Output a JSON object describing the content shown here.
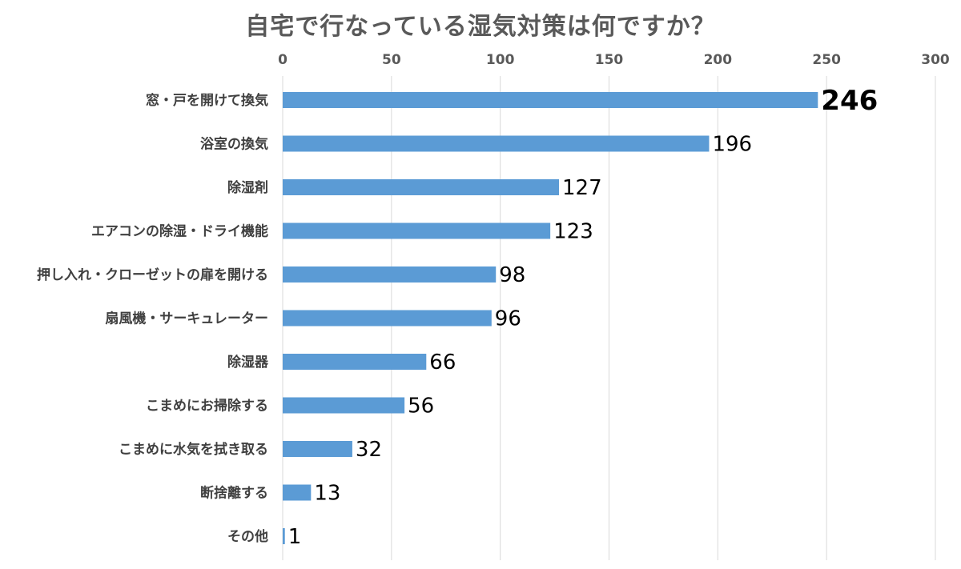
{
  "chart_data": {
    "type": "bar",
    "orientation": "horizontal",
    "title": "自宅で行なっている湿気対策は何ですか？",
    "xlim": [
      0,
      300
    ],
    "x_ticks": [
      0,
      50,
      100,
      150,
      200,
      250,
      300
    ],
    "x_tick_labels": [
      "0",
      "50",
      "100",
      "150",
      "200",
      "250",
      "300"
    ],
    "axis_position": "top",
    "grid": "vertical",
    "bar_color": "#5b9bd5",
    "categories": [
      "窓・戸を開けて換気",
      "浴室の換気",
      "除湿剤",
      "エアコンの除湿・ドライ機能",
      "押し入れ・クローゼットの扉を開ける",
      "扇風機・サーキュレーター",
      "除湿器",
      "こまめにお掃除する",
      "こまめに水気を拭き取る",
      "断捨離する",
      "その他"
    ],
    "values": [
      246,
      196,
      127,
      123,
      98,
      96,
      66,
      56,
      32,
      13,
      1
    ],
    "value_labels": [
      "246",
      "196",
      "127",
      "123",
      "98",
      "96",
      "66",
      "56",
      "32",
      "13",
      "1"
    ]
  }
}
